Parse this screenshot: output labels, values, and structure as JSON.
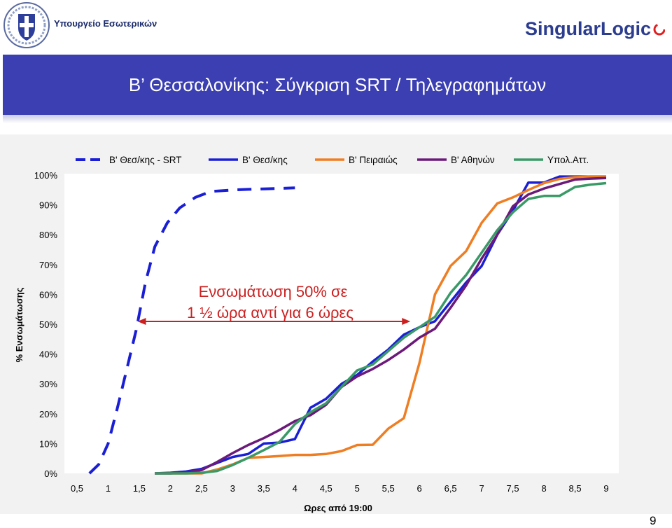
{
  "header": {
    "ministry_name": "Υπουργείο Εσωτερικών",
    "brand_name": "SingularLogic",
    "seal_icon": "greek-coat-of-arms"
  },
  "slide": {
    "title": "Β’ Θεσσαλονίκης: Σύγκριση SRT / Τηλεγραφημάτων",
    "page_number": "9"
  },
  "colors": {
    "title_band": "#3b3fb1",
    "srt": "#1a1fd6",
    "thess": "#1a1fd6",
    "piraeus": "#ef7d22",
    "athens": "#6b1a7a",
    "ypol": "#3a9a67",
    "annotation": "#cc2020"
  },
  "chart_data": {
    "type": "line",
    "title": "",
    "xlabel": "Ωρες από 19:00",
    "ylabel": "% Ενσωμάτωσης",
    "xlim": [
      0.5,
      9
    ],
    "ylim": [
      0,
      100
    ],
    "x_ticks": [
      "0,5",
      "1",
      "1,5",
      "2",
      "2,5",
      "3",
      "3,5",
      "4",
      "4,5",
      "5",
      "5,5",
      "6",
      "6,5",
      "7",
      "7,5",
      "8",
      "8,5",
      "9"
    ],
    "y_ticks": [
      "0%",
      "10%",
      "20%",
      "30%",
      "40%",
      "50%",
      "60%",
      "70%",
      "80%",
      "90%",
      "100%"
    ],
    "legend_position": "top",
    "series": [
      {
        "name": "Β' Θεσ/κης - SRT",
        "color_key": "srt",
        "dashed": true,
        "x": [
          0.7,
          0.85,
          1.0,
          1.15,
          1.3,
          1.45,
          1.6,
          1.75,
          1.95,
          2.15,
          2.4,
          2.65,
          3.0,
          3.25,
          3.55,
          4.0
        ],
        "y": [
          0,
          3,
          10,
          22,
          35,
          48,
          64,
          76,
          84,
          89,
          92.5,
          94.5,
          95,
          95.2,
          95.4,
          95.7
        ]
      },
      {
        "name": "Β' Θεσ/κης",
        "color_key": "thess",
        "dashed": false,
        "x": [
          1.75,
          2.0,
          2.25,
          2.5,
          2.75,
          3.0,
          3.25,
          3.5,
          3.75,
          4.0,
          4.25,
          4.5,
          4.75,
          5.0,
          5.25,
          5.5,
          5.75,
          6.0,
          6.25,
          6.5,
          6.75,
          7.0,
          7.25,
          7.5,
          7.75,
          8.0,
          8.25,
          8.5,
          8.75,
          9.0
        ],
        "y": [
          0,
          0.2,
          0.6,
          1.5,
          3.5,
          5.5,
          6.5,
          10,
          10.3,
          11.5,
          22,
          25,
          30,
          33,
          37.5,
          41.5,
          46.5,
          49,
          51,
          57.5,
          64,
          69.5,
          80,
          88,
          97.5,
          97.5,
          99.5,
          99.5,
          99.5,
          99.5
        ]
      },
      {
        "name": "Β' Πειραιώς",
        "color_key": "piraeus",
        "dashed": false,
        "x": [
          1.75,
          2.0,
          2.25,
          2.5,
          2.75,
          3.0,
          3.25,
          3.5,
          3.75,
          4.0,
          4.25,
          4.5,
          4.75,
          5.0,
          5.25,
          5.5,
          5.75,
          6.0,
          6.25,
          6.5,
          6.75,
          7.0,
          7.25,
          7.5,
          7.75,
          8.0,
          8.25,
          8.5,
          8.75,
          9.0
        ],
        "y": [
          0,
          0,
          0,
          0,
          1.3,
          3,
          5.2,
          5.5,
          5.8,
          6.2,
          6.2,
          6.5,
          7.5,
          9.5,
          9.6,
          15,
          18.5,
          37,
          60,
          69.5,
          74.5,
          84,
          90.5,
          92.5,
          95,
          97.3,
          98.7,
          99.3,
          99.5,
          99.5
        ]
      },
      {
        "name": "Β' Αθηνών",
        "color_key": "athens",
        "dashed": false,
        "x": [
          1.75,
          2.0,
          2.25,
          2.5,
          2.75,
          3.0,
          3.25,
          3.5,
          3.75,
          4.0,
          4.25,
          4.5,
          4.75,
          5.0,
          5.25,
          5.5,
          5.75,
          6.0,
          6.25,
          6.5,
          6.75,
          7.0,
          7.25,
          7.5,
          7.75,
          8.0,
          8.25,
          8.5,
          8.75,
          9.0
        ],
        "y": [
          0,
          0,
          0.3,
          1.1,
          3.8,
          6.8,
          9.5,
          11.8,
          14.5,
          17.5,
          19.5,
          23,
          29,
          32.5,
          35,
          38,
          41.5,
          45.5,
          48.5,
          55.5,
          63,
          72,
          80,
          89.5,
          93.5,
          95.5,
          97,
          98.5,
          98.8,
          99
        ]
      },
      {
        "name": "Υπολ.Αττ.",
        "color_key": "ypol",
        "dashed": false,
        "x": [
          1.75,
          2.0,
          2.25,
          2.5,
          2.75,
          3.0,
          3.25,
          3.5,
          3.75,
          4.0,
          4.25,
          4.5,
          4.75,
          5.0,
          5.25,
          5.5,
          5.75,
          6.0,
          6.25,
          6.5,
          6.75,
          7.0,
          7.25,
          7.5,
          7.75,
          8.0,
          8.25,
          8.5,
          8.75,
          9.0
        ],
        "y": [
          0,
          0,
          0,
          0.2,
          0.8,
          2.8,
          5.2,
          7.8,
          10.5,
          16.5,
          20.5,
          23.5,
          29,
          34.5,
          36.5,
          41,
          45.5,
          49,
          52.5,
          60.5,
          66.5,
          74,
          81.5,
          87.5,
          92,
          93,
          93,
          96,
          96.8,
          97.3
        ]
      }
    ],
    "annotation": {
      "line1": "Ενσωμάτωση 50% σε",
      "line2": "1 ½ ώρα αντί για 6 ώρες",
      "arrow_from_x": 1.45,
      "arrow_to_x": 5.9,
      "arrow_y": 50
    }
  }
}
